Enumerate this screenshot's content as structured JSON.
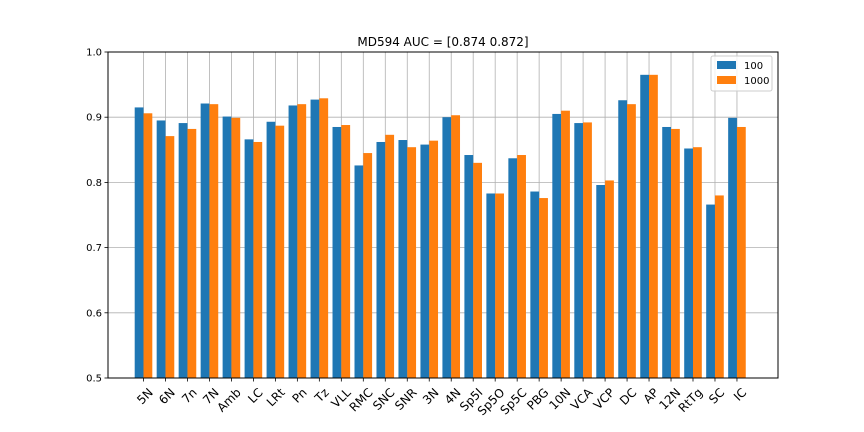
{
  "chart_data": {
    "type": "bar",
    "title": "MD594  AUC = [0.874 0.872]",
    "xlabel": "",
    "ylabel": "",
    "ylim": [
      0.5,
      1.0
    ],
    "yticks": [
      "0.5",
      "0.6",
      "0.7",
      "0.8",
      "0.9",
      "1.0"
    ],
    "grid": true,
    "legend_position": "top-right",
    "categories": [
      "5N",
      "6N",
      "7n",
      "7N",
      "Amb",
      "LC",
      "LRt",
      "Pn",
      "Tz",
      "VLL",
      "RMC",
      "SNC",
      "SNR",
      "3N",
      "4N",
      "Sp5I",
      "Sp5O",
      "Sp5C",
      "PBG",
      "10N",
      "VCA",
      "VCP",
      "DC",
      "AP",
      "12N",
      "RtTg",
      "SC",
      "IC"
    ],
    "series": [
      {
        "name": "100",
        "color": "#1f77b4",
        "values": [
          0.915,
          0.895,
          0.891,
          0.921,
          0.901,
          0.866,
          0.893,
          0.918,
          0.927,
          0.885,
          0.826,
          0.862,
          0.865,
          0.858,
          0.9,
          0.842,
          0.783,
          0.837,
          0.786,
          0.905,
          0.891,
          0.796,
          0.926,
          0.965,
          0.885,
          0.852,
          0.766,
          0.899
        ]
      },
      {
        "name": "1000",
        "color": "#ff7f0e",
        "values": [
          0.906,
          0.871,
          0.882,
          0.92,
          0.899,
          0.862,
          0.887,
          0.92,
          0.929,
          0.888,
          0.845,
          0.873,
          0.854,
          0.864,
          0.903,
          0.83,
          0.783,
          0.842,
          0.776,
          0.91,
          0.892,
          0.803,
          0.92,
          0.965,
          0.882,
          0.854,
          0.78,
          0.885
        ]
      }
    ]
  }
}
